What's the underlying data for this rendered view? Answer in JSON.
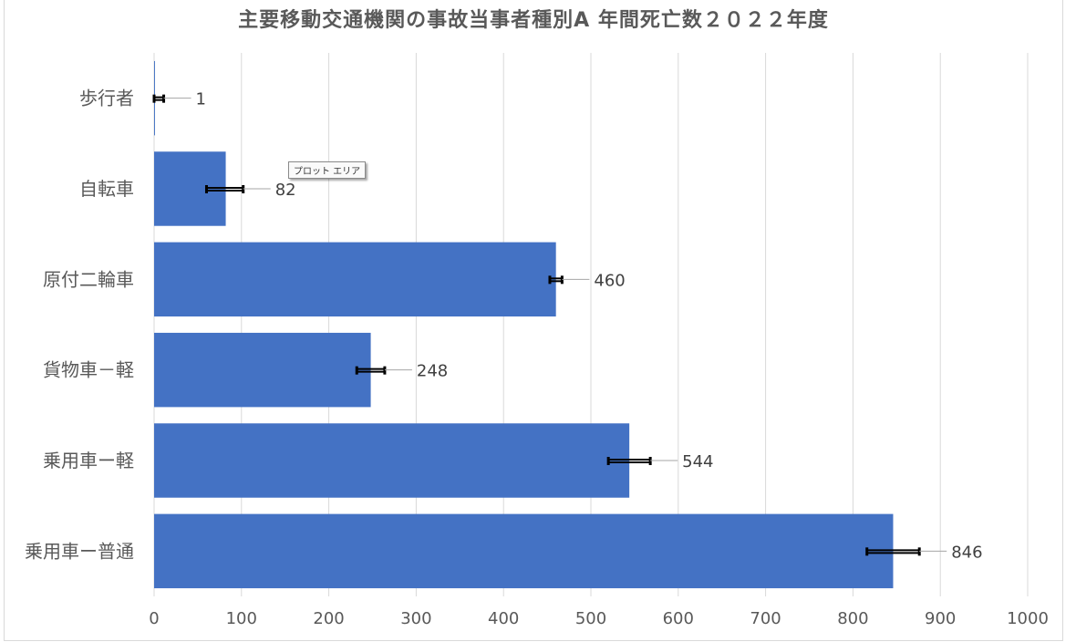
{
  "chart_data": {
    "type": "bar",
    "orientation": "horizontal",
    "title": "主要移動交通機関の事故当事者種別A 年間死亡数２０２２年度",
    "categories": [
      "歩行者",
      "自転車",
      "原付二輪車",
      "貨物車－軽",
      "乗用車ー軽",
      "乗用車ー普通"
    ],
    "series": [
      {
        "values": [
          1,
          82,
          460,
          248,
          544,
          846
        ],
        "color": "#4472C4"
      }
    ],
    "error_bars": [
      {
        "minus": 1,
        "plus": 10
      },
      {
        "minus": 22,
        "plus": 20
      },
      {
        "minus": 7,
        "plus": 7
      },
      {
        "minus": 16,
        "plus": 16
      },
      {
        "minus": 24,
        "plus": 24
      },
      {
        "minus": 30,
        "plus": 30
      }
    ],
    "data_labels": [
      "1",
      "82",
      "460",
      "248",
      "544",
      "846"
    ],
    "xlim": [
      0,
      1000
    ],
    "xticks": [
      0,
      100,
      200,
      300,
      400,
      500,
      600,
      700,
      800,
      900,
      1000
    ],
    "grid": true,
    "legend": "none"
  },
  "tooltip": {
    "text": "プロット エリア"
  }
}
